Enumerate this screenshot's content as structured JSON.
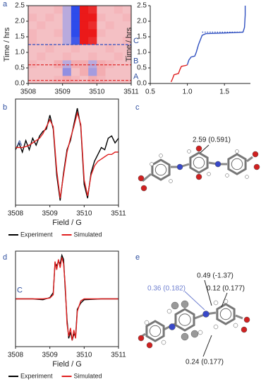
{
  "panel_labels": [
    "a",
    "b",
    "c",
    "d",
    "e"
  ],
  "chart_data": [
    {
      "type": "heatmap",
      "ylabel": "Time / hrs",
      "x_bins": [
        3508,
        3508.25,
        3508.5,
        3508.75,
        3509,
        3509.25,
        3509.5,
        3509.75,
        3510,
        3510.25,
        3510.5,
        3510.75,
        3511
      ],
      "y_bins": [
        0,
        0.25,
        0.5,
        0.75,
        1,
        1.25,
        1.5,
        1.75,
        2,
        2.25,
        2.5
      ],
      "z": [
        [
          0.1,
          0.1,
          0.1,
          0.15,
          0.2,
          0.15,
          0.1,
          0.2,
          0.15,
          0.1,
          0.1,
          0.1
        ],
        [
          0.1,
          0.1,
          0.1,
          0.1,
          -0.5,
          0.1,
          0.2,
          -0.4,
          0.2,
          0.1,
          0.1,
          0.1
        ],
        [
          0.15,
          0.1,
          0.1,
          0.2,
          -0.3,
          0.2,
          0.2,
          -0.3,
          0.2,
          0.15,
          0.1,
          0.1
        ],
        [
          0.1,
          0.15,
          0.1,
          0.1,
          0.15,
          0.1,
          0.1,
          0.15,
          0.1,
          0.1,
          0.15,
          0.1
        ],
        [
          0.1,
          0.1,
          0.15,
          0.1,
          0.1,
          0.15,
          0.1,
          0.1,
          0.1,
          0.15,
          0.1,
          0.1
        ],
        [
          0.15,
          0.1,
          0.1,
          0.1,
          -0.3,
          -0.9,
          1.0,
          0.9,
          0.1,
          0.1,
          0.1,
          0.15
        ],
        [
          0.15,
          0.1,
          0.1,
          0.15,
          -0.3,
          -1.0,
          1.0,
          1.0,
          0.15,
          0.1,
          0.1,
          0.1
        ],
        [
          0.1,
          0.15,
          0.1,
          0.1,
          -0.3,
          -1.0,
          1.0,
          0.9,
          0.1,
          0.15,
          0.1,
          0.1
        ],
        [
          0.15,
          0.1,
          0.15,
          0.1,
          -0.3,
          -1.0,
          1.0,
          1.0,
          0.15,
          0.1,
          0.1,
          0.15
        ],
        [
          0.1,
          0.1,
          0.1,
          0.15,
          -0.3,
          -1.0,
          1.0,
          0.9,
          0.1,
          0.1,
          0.15,
          0.1
        ]
      ],
      "xlim": [
        3508,
        3511
      ],
      "ylim": [
        0,
        2.5
      ],
      "xticks": [
        3508,
        3509,
        3510,
        3511
      ],
      "yticks": [
        {
          "value": 0,
          "label": "0.0"
        },
        0.5,
        {
          "value": 1,
          "label": "1.0"
        },
        1.5,
        {
          "value": 2,
          "label": "2.0"
        },
        2.5
      ],
      "markers": [
        {
          "label": "A",
          "y": 0.1,
          "color": "#e03030"
        },
        {
          "label": "B",
          "y": 0.6,
          "color": "#e03030"
        },
        {
          "label": "C",
          "y": 1.25,
          "color": "#3050c0"
        }
      ]
    },
    {
      "type": "line",
      "ylabel": "Time / hrs",
      "series": [
        {
          "color": "#e02020",
          "x": [
            0.78,
            0.8,
            0.82,
            0.85,
            0.88,
            0.9,
            0.92,
            0.98,
            1.0
          ],
          "values": [
            0.05,
            0.15,
            0.28,
            0.3,
            0.32,
            0.45,
            0.55,
            0.58,
            0.6
          ]
        },
        {
          "color": "#3050c0",
          "x": [
            1.0,
            1.02,
            1.05,
            1.1,
            1.12,
            1.15,
            1.2,
            1.25,
            1.5,
            1.75,
            1.77,
            1.78,
            1.78
          ],
          "values": [
            0.6,
            0.75,
            0.85,
            0.88,
            1.0,
            1.25,
            1.55,
            1.6,
            1.62,
            1.65,
            1.8,
            2.2,
            2.5
          ]
        },
        {
          "color": "#3050c0",
          "dash": true,
          "x": [
            1.2,
            1.75
          ],
          "values": [
            1.65,
            1.65
          ]
        }
      ],
      "xlim": [
        0.5,
        1.85
      ],
      "ylim": [
        0,
        2.5
      ],
      "xticks": [
        0.5,
        {
          "value": 1,
          "label": "1.0"
        },
        1.5
      ],
      "yticks": [
        {
          "value": 0,
          "label": "0.0"
        },
        0.5,
        {
          "value": 1,
          "label": "1.0"
        },
        1.5,
        {
          "value": 2,
          "label": "2.0"
        },
        2.5
      ]
    },
    {
      "type": "line",
      "xlabel": "Field / G",
      "annotation": "A",
      "x": [
        3508,
        3508.1,
        3508.2,
        3508.3,
        3508.4,
        3508.5,
        3508.6,
        3508.7,
        3508.8,
        3508.9,
        3509,
        3509.1,
        3509.2,
        3509.3,
        3509.4,
        3509.5,
        3509.6,
        3509.7,
        3509.8,
        3509.9,
        3510,
        3510.1,
        3510.2,
        3510.3,
        3510.4,
        3510.5,
        3510.6,
        3510.7,
        3510.8,
        3510.9,
        3511
      ],
      "series": [
        {
          "name": "Experiment",
          "color": "#000000",
          "values": [
            0.05,
            0.2,
            0.0,
            0.25,
            0.05,
            0.3,
            0.15,
            0.35,
            0.45,
            0.5,
            0.8,
            0.5,
            -0.5,
            -1.05,
            -0.45,
            0.05,
            0.25,
            0.6,
            0.95,
            0.55,
            -0.7,
            -1.0,
            -0.45,
            -0.2,
            -0.05,
            0.1,
            0.05,
            0.3,
            0.35,
            0.2,
            0.3
          ]
        },
        {
          "name": "Simulated",
          "color": "#e02020",
          "values": [
            0.1,
            0.1,
            0.1,
            0.12,
            0.15,
            0.2,
            0.25,
            0.3,
            0.4,
            0.55,
            0.7,
            0.55,
            -0.4,
            -1.0,
            -0.5,
            0.0,
            0.3,
            0.55,
            0.85,
            0.6,
            -0.6,
            -0.95,
            -0.5,
            -0.3,
            -0.2,
            -0.15,
            -0.1,
            -0.05,
            -0.05,
            0.0,
            0.0
          ]
        }
      ],
      "xlim": [
        3508,
        3511
      ],
      "ylim": [
        -1.15,
        1.15
      ],
      "xticks": [
        3508,
        3509,
        3510,
        3511
      ]
    },
    {
      "type": "line",
      "xlabel": "Field / G",
      "annotation": "C",
      "x": [
        3508,
        3508.5,
        3508.8,
        3509.0,
        3509.1,
        3509.15,
        3509.2,
        3509.25,
        3509.3,
        3509.35,
        3509.4,
        3509.45,
        3509.5,
        3509.55,
        3509.6,
        3509.65,
        3509.7,
        3509.75,
        3509.8,
        3509.9,
        3510.0,
        3510.5,
        3511
      ],
      "series": [
        {
          "name": "Experiment",
          "color": "#000000",
          "values": [
            0,
            0,
            -0.02,
            0.03,
            0.15,
            0.85,
            0.8,
            0.9,
            0.85,
            1.05,
            0.95,
            0.2,
            -0.5,
            -0.95,
            -0.8,
            -1.0,
            -0.85,
            -0.9,
            -0.25,
            -0.1,
            -0.02,
            0,
            0
          ]
        },
        {
          "name": "Simulated",
          "color": "#e02020",
          "values": [
            0,
            0,
            0,
            0.02,
            0.1,
            0.9,
            0.7,
            0.95,
            0.75,
            1.0,
            0.85,
            0.3,
            -0.6,
            -0.9,
            -0.7,
            -1.0,
            -0.75,
            -0.95,
            -0.3,
            -0.05,
            0,
            0,
            0
          ]
        }
      ],
      "xlim": [
        3508,
        3511
      ],
      "ylim": [
        -1.15,
        1.15
      ],
      "xticks": [
        3508,
        3509,
        3510,
        3511
      ]
    }
  ],
  "molecule_c": {
    "annotations": [
      "2.59 (0.591)"
    ]
  },
  "molecule_e": {
    "annotations": [
      "0.49 (-1.37)",
      "0.36 (0.182)",
      "0.12 (0.177)",
      "0.24 (0.177)"
    ]
  }
}
